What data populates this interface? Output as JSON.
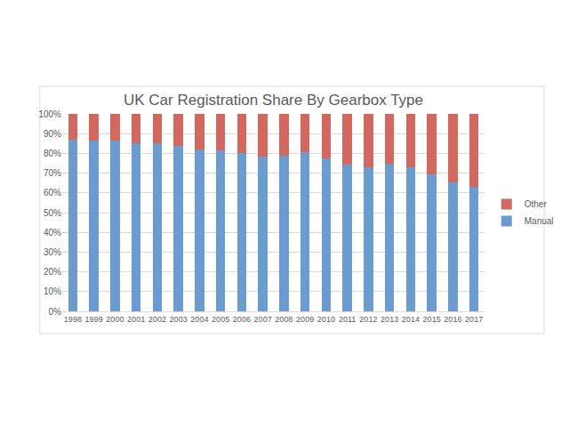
{
  "chart_data": {
    "type": "bar",
    "title": "UK Car Registration Share By Gearbox Type",
    "stacked": true,
    "grid": true,
    "legend": "right",
    "categories": [
      "1998",
      "1999",
      "2000",
      "2001",
      "2002",
      "2003",
      "2004",
      "2005",
      "2006",
      "2007",
      "2008",
      "2009",
      "2010",
      "2011",
      "2012",
      "2013",
      "2014",
      "2015",
      "2016",
      "2017"
    ],
    "series": [
      {
        "name": "Manual",
        "color": "#6a9bd1",
        "values": [
          87,
          86.5,
          86.5,
          85,
          85,
          84,
          82,
          81.5,
          80,
          78.5,
          79,
          80.5,
          77.5,
          74.5,
          73,
          75,
          73,
          69.5,
          65.5,
          63
        ]
      },
      {
        "name": "Other",
        "color": "#d4675e",
        "values": [
          13,
          13.5,
          13.5,
          15,
          15,
          16,
          18,
          18.5,
          20,
          21.5,
          21,
          19.5,
          22.5,
          25.5,
          27,
          25,
          27,
          30.5,
          34.5,
          37
        ]
      }
    ],
    "ylim": [
      0,
      100
    ],
    "yticks": [
      {
        "value": 0,
        "label": "0%"
      },
      {
        "value": 10,
        "label": "10%"
      },
      {
        "value": 20,
        "label": "20%"
      },
      {
        "value": 30,
        "label": "30%"
      },
      {
        "value": 40,
        "label": "40%"
      },
      {
        "value": 50,
        "label": "50%"
      },
      {
        "value": 60,
        "label": "60%"
      },
      {
        "value": 70,
        "label": "70%"
      },
      {
        "value": 80,
        "label": "80%"
      },
      {
        "value": 90,
        "label": "90%"
      },
      {
        "value": 100,
        "label": "100%"
      }
    ]
  }
}
